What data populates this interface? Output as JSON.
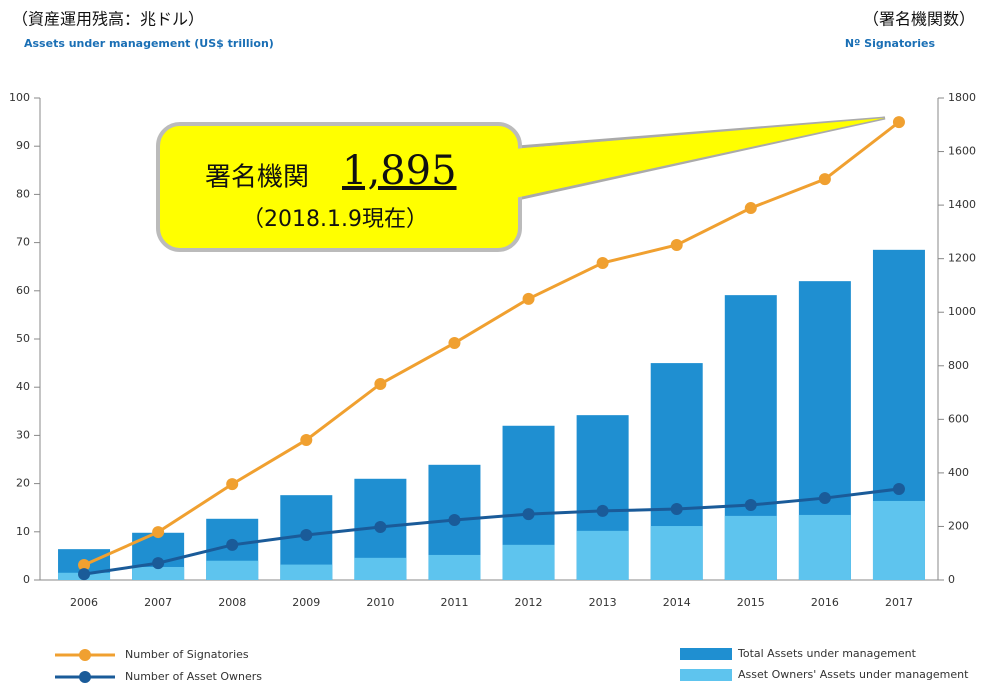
{
  "chart_data": {
    "type": "bar",
    "ylabel": [
      "（資産運用残高：兆ドル）",
      "Assets under management (US$ trillion)"
    ],
    "y2label": [
      "（署名機関数）",
      "Nº Signatories"
    ],
    "annotation": {
      "text": "署名機関",
      "number": "1,895",
      "note": "（2018.1.9現在）"
    },
    "categories": [
      "2006",
      "2007",
      "2008",
      "2009",
      "2010",
      "2011",
      "2012",
      "2013",
      "2014",
      "2015",
      "2016",
      "2017"
    ],
    "series": [
      {
        "name": "Total Assets under management",
        "type": "bar",
        "color": "#1f8fd1",
        "values": [
          6.4,
          9.8,
          12.7,
          17.6,
          21,
          23.9,
          32,
          34.2,
          45,
          59.1,
          62,
          68.5
        ]
      },
      {
        "name": "Asset Owners' Assets under management",
        "type": "bar",
        "color": "#5ec4ee",
        "values": [
          1.5,
          2.7,
          4,
          3.2,
          4.6,
          5.2,
          7.3,
          10.2,
          11.2,
          13.3,
          13.5,
          16.4
        ]
      },
      {
        "name": "Number of Signatories",
        "type": "line",
        "axis": "y2",
        "color": "#f0a030",
        "values": [
          56,
          179,
          358,
          523,
          732,
          885,
          1050,
          1184,
          1251,
          1389,
          1497,
          1710
        ]
      },
      {
        "name": "Number of Asset Owners",
        "type": "line",
        "axis": "y2",
        "color": "#1a5b99",
        "values": [
          22,
          63,
          131,
          168,
          198,
          224,
          246,
          258,
          265,
          280,
          306,
          340
        ]
      }
    ],
    "ylim": [
      0,
      100
    ],
    "yticks": [
      0,
      10,
      20,
      30,
      40,
      50,
      60,
      70,
      80,
      90,
      100
    ],
    "y2lim": [
      0,
      1800
    ],
    "y2ticks": [
      0,
      200,
      400,
      600,
      800,
      1000,
      1200,
      1400,
      1600,
      1800
    ]
  }
}
